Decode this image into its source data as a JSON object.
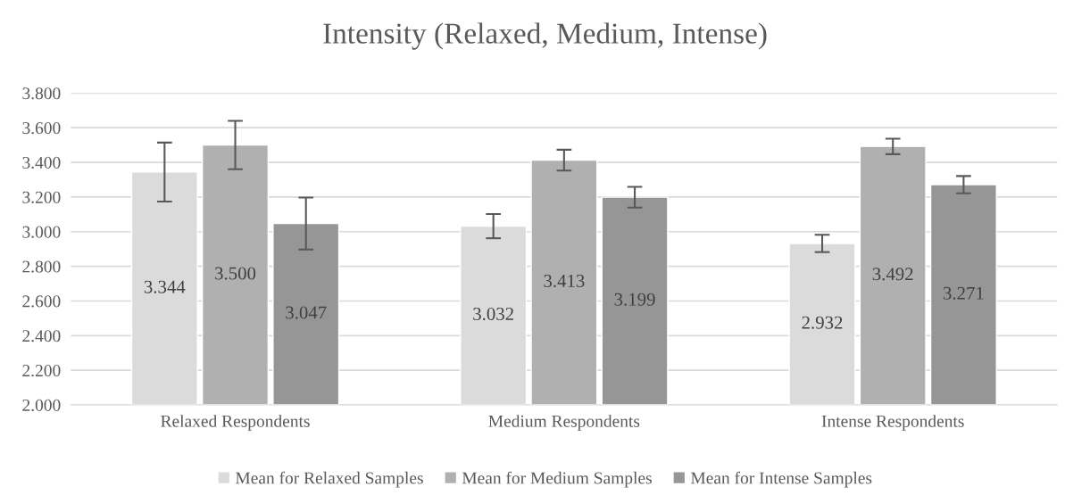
{
  "chart_data": {
    "type": "bar",
    "title": "Intensity (Relaxed, Medium, Intense)",
    "categories": [
      "Relaxed Respondents",
      "Medium Respondents",
      "Intense Respondents"
    ],
    "series": [
      {
        "name": "Mean for Relaxed Samples",
        "color": "#dbdbdb",
        "values": [
          3.344,
          3.032,
          2.932
        ],
        "value_labels": [
          "3.344",
          "3.032",
          "2.932"
        ],
        "errors": [
          0.17,
          0.07,
          0.05
        ]
      },
      {
        "name": "Mean for Medium Samples",
        "color": "#b0b0b0",
        "values": [
          3.5,
          3.413,
          3.492
        ],
        "value_labels": [
          "3.500",
          "3.413",
          "3.492"
        ],
        "errors": [
          0.14,
          0.06,
          0.045
        ]
      },
      {
        "name": "Mean for Intense Samples",
        "color": "#969696",
        "values": [
          3.047,
          3.199,
          3.271
        ],
        "value_labels": [
          "3.047",
          "3.199",
          "3.271"
        ],
        "errors": [
          0.15,
          0.06,
          0.05
        ]
      }
    ],
    "ylim": [
      2.0,
      3.8
    ],
    "yticks": [
      {
        "value": 2.0,
        "label": "2.000"
      },
      {
        "value": 2.2,
        "label": "2.200"
      },
      {
        "value": 2.4,
        "label": "2.400"
      },
      {
        "value": 2.6,
        "label": "2.600"
      },
      {
        "value": 2.8,
        "label": "2.800"
      },
      {
        "value": 3.0,
        "label": "3.000"
      },
      {
        "value": 3.2,
        "label": "3.200"
      },
      {
        "value": 3.4,
        "label": "3.400"
      },
      {
        "value": 3.6,
        "label": "3.600"
      },
      {
        "value": 3.8,
        "label": "3.800"
      }
    ],
    "grid": "y",
    "legend": "bottom"
  }
}
